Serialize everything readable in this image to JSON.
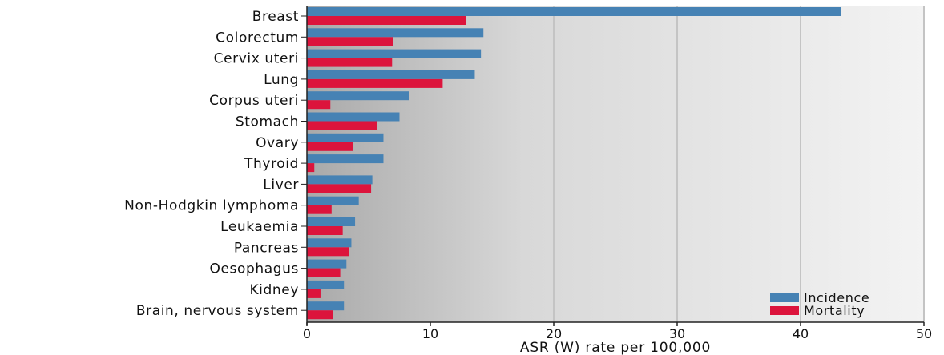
{
  "chart_data": {
    "type": "bar",
    "orientation": "horizontal",
    "categories": [
      "Breast",
      "Colorectum",
      "Cervix uteri",
      "Lung",
      "Corpus uteri",
      "Stomach",
      "Ovary",
      "Thyroid",
      "Liver",
      "Non-Hodgkin lymphoma",
      "Leukaemia",
      "Pancreas",
      "Oesophagus",
      "Kidney",
      "Brain, nervous system"
    ],
    "series": [
      {
        "name": "Incidence",
        "color": "#4682b4",
        "values": [
          43.3,
          14.3,
          14.1,
          13.6,
          8.3,
          7.5,
          6.2,
          6.2,
          5.3,
          4.2,
          3.9,
          3.6,
          3.2,
          3.0,
          3.0
        ]
      },
      {
        "name": "Mortality",
        "color": "#dc143c",
        "values": [
          12.9,
          7.0,
          6.9,
          11.0,
          1.9,
          5.7,
          3.7,
          0.6,
          5.2,
          2.0,
          2.9,
          3.4,
          2.7,
          1.1,
          2.1
        ]
      }
    ],
    "xlabel": "ASR (W) rate per 100,000",
    "xlim": [
      0,
      50
    ],
    "xticks": [
      0,
      10,
      20,
      30,
      40,
      50
    ],
    "grid": "vertical",
    "legend_position": "bottom-right"
  }
}
